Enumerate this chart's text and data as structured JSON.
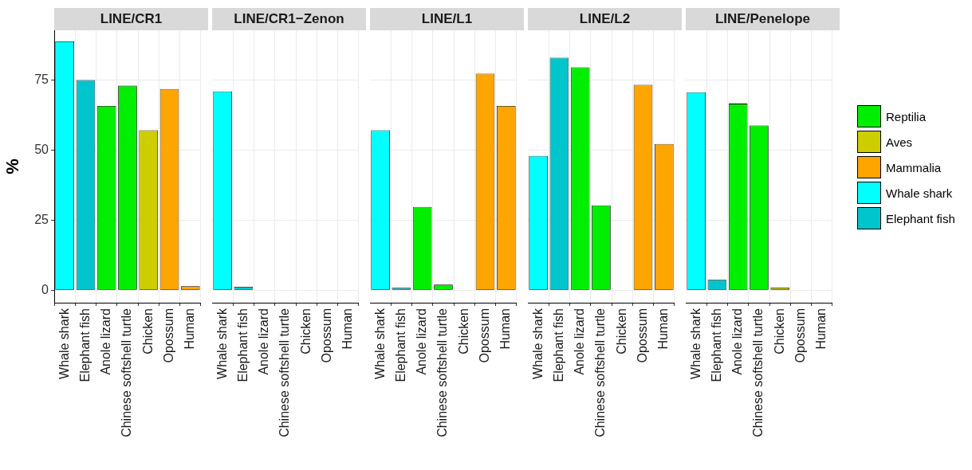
{
  "chart_data": [
    {
      "type": "bar",
      "title": "LINE/CR1",
      "ylabel": "%",
      "categories": [
        "Whale shark",
        "Elephant fish",
        "Anole lizard",
        "Chinese softshell turtle",
        "Chicken",
        "Opossum",
        "Human"
      ],
      "stacked": true,
      "ylim": [
        -4.5,
        92.8
      ],
      "yticks": [
        0,
        25,
        50,
        75
      ],
      "grid": true,
      "legend": "right",
      "series": [
        {
          "name": "Reptilia",
          "color": "#00ee00",
          "values": [
            null,
            null,
            65.8,
            73,
            null,
            null,
            null
          ]
        },
        {
          "name": "Aves",
          "color": "#cdcd00",
          "values": [
            null,
            null,
            null,
            null,
            57.1,
            null,
            null
          ]
        },
        {
          "name": "Mammalia",
          "color": "#ffa500",
          "values": [
            null,
            null,
            null,
            null,
            null,
            71.8,
            1.4
          ]
        },
        {
          "name": "Whale shark",
          "color": "#00ffff",
          "values": [
            88.8,
            null,
            null,
            null,
            null,
            null,
            null
          ]
        },
        {
          "name": "Elephant fish",
          "color": "#00c5cd",
          "values": [
            null,
            75,
            null,
            null,
            null,
            null,
            null
          ]
        }
      ]
    },
    {
      "type": "bar",
      "title": "LINE/CR1−Zenon",
      "categories": [
        "Whale shark",
        "Elephant fish",
        "Anole lizard",
        "Chinese softshell turtle",
        "Chicken",
        "Opossum",
        "Human"
      ],
      "stacked": true,
      "ylim": [
        -4.5,
        92.8
      ],
      "yticks": [
        0,
        25,
        50,
        75
      ],
      "grid": true,
      "legend": "right",
      "tick_labels": "x",
      "series": [
        {
          "name": "Whale shark",
          "color": "#00ffff",
          "values": [
            71,
            null,
            null,
            null,
            null,
            null,
            null
          ]
        },
        {
          "name": "Elephant fish",
          "color": "#00c5cd",
          "values": [
            null,
            1.2,
            null,
            null,
            null,
            null,
            null
          ]
        }
      ]
    },
    {
      "type": "bar",
      "title": "LINE/L1",
      "categories": [
        "Whale shark",
        "Elephant fish",
        "Anole lizard",
        "Chinese softshell turtle",
        "Chicken",
        "Opossum",
        "Human"
      ],
      "stacked": true,
      "ylim": [
        -4.5,
        92.8
      ],
      "yticks": [
        0,
        25,
        50,
        75
      ],
      "grid": true,
      "legend": "right",
      "tick_labels": "x",
      "series": [
        {
          "name": "Reptilia",
          "color": "#00ee00",
          "values": [
            null,
            null,
            29.7,
            2,
            null,
            null,
            null
          ]
        },
        {
          "name": "Mammalia",
          "color": "#ffa500",
          "values": [
            null,
            null,
            null,
            null,
            null,
            77.3,
            65.8
          ]
        },
        {
          "name": "Whale shark",
          "color": "#00ffff",
          "values": [
            57.1,
            null,
            null,
            null,
            null,
            null,
            null
          ]
        },
        {
          "name": "Elephant fish",
          "color": "#00c5cd",
          "values": [
            null,
            0.8,
            null,
            null,
            null,
            null,
            null
          ]
        }
      ]
    },
    {
      "type": "bar",
      "title": "LINE/L2",
      "categories": [
        "Whale shark",
        "Elephant fish",
        "Anole lizard",
        "Chinese softshell turtle",
        "Chicken",
        "Opossum",
        "Human"
      ],
      "stacked": true,
      "ylim": [
        -4.5,
        92.8
      ],
      "yticks": [
        0,
        25,
        50,
        75
      ],
      "grid": true,
      "legend": "right",
      "tick_labels": "x",
      "series": [
        {
          "name": "Reptilia",
          "color": "#00ee00",
          "values": [
            null,
            null,
            79.6,
            30.3,
            null,
            null,
            null
          ]
        },
        {
          "name": "Mammalia",
          "color": "#ffa500",
          "values": [
            null,
            null,
            null,
            null,
            null,
            73.3,
            52.2
          ]
        },
        {
          "name": "Whale shark",
          "color": "#00ffff",
          "values": [
            47.9,
            null,
            null,
            null,
            null,
            null,
            null
          ]
        },
        {
          "name": "Elephant fish",
          "color": "#00c5cd",
          "values": [
            null,
            83,
            null,
            null,
            null,
            null,
            null
          ]
        }
      ]
    },
    {
      "type": "bar",
      "title": "LINE/Penelope",
      "categories": [
        "Whale shark",
        "Elephant fish",
        "Anole lizard",
        "Chinese softshell turtle",
        "Chicken",
        "Opossum",
        "Human"
      ],
      "stacked": true,
      "ylim": [
        -4.5,
        92.8
      ],
      "yticks": [
        0,
        25,
        50,
        75
      ],
      "grid": true,
      "legend": "right",
      "tick_labels": "x",
      "series": [
        {
          "name": "Reptilia",
          "color": "#00ee00",
          "values": [
            null,
            null,
            66.6,
            58.8,
            null,
            null,
            null
          ]
        },
        {
          "name": "Aves",
          "color": "#cdcd00",
          "values": [
            null,
            null,
            null,
            null,
            0.9,
            null,
            null
          ]
        },
        {
          "name": "Whale shark",
          "color": "#00ffff",
          "values": [
            70.7,
            null,
            null,
            null,
            null,
            null,
            null
          ]
        },
        {
          "name": "Elephant fish",
          "color": "#00c5cd",
          "values": [
            null,
            3.7,
            null,
            null,
            null,
            null,
            null
          ]
        }
      ]
    }
  ]
}
